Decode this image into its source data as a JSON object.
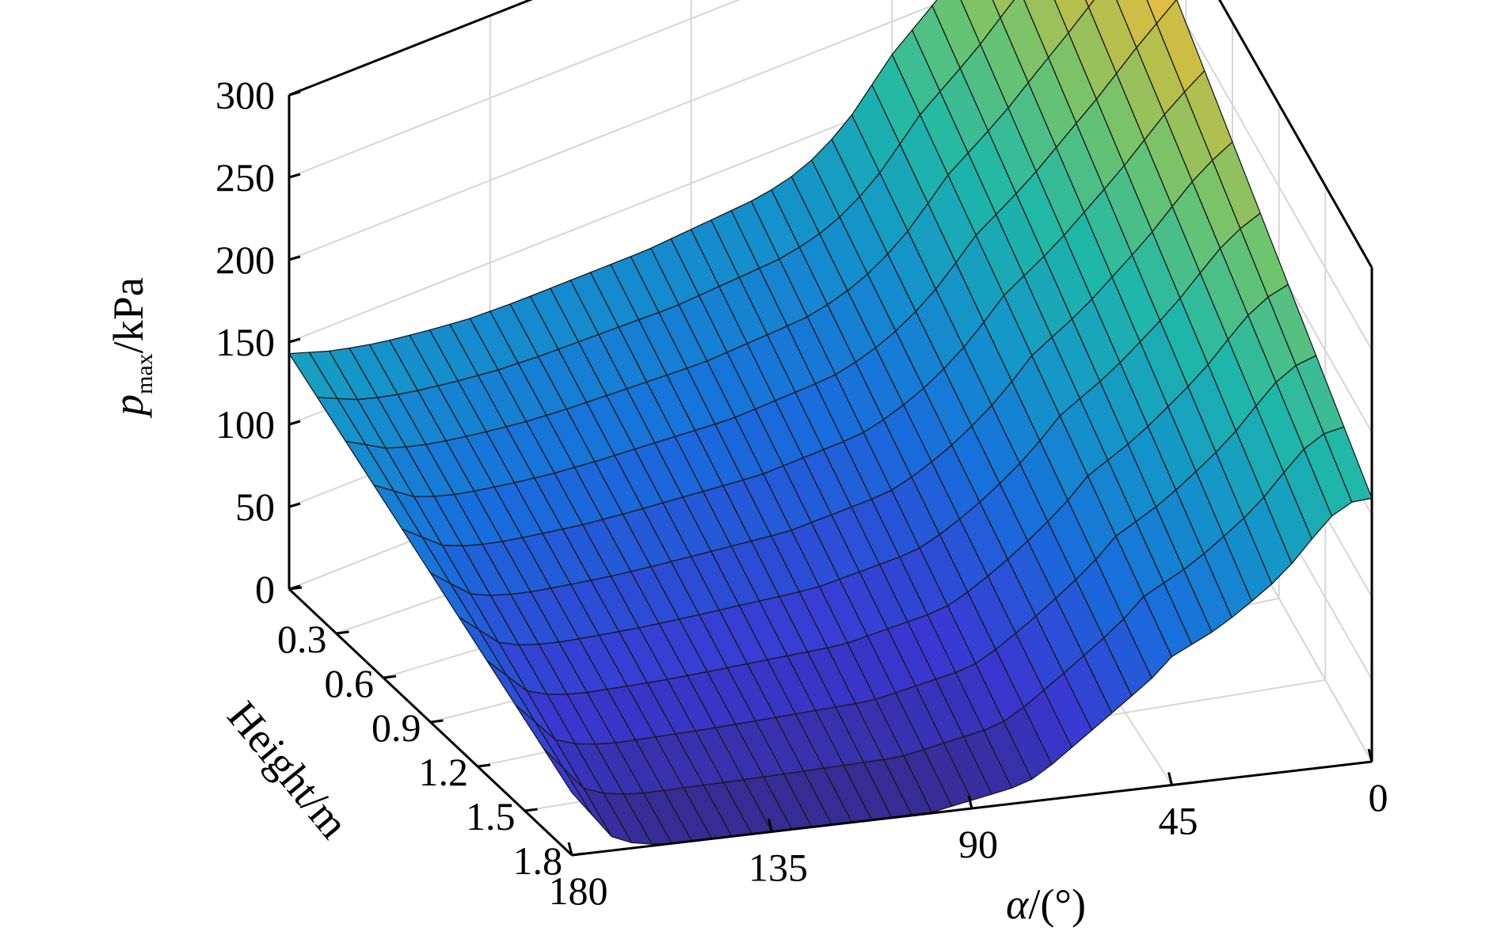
{
  "chart_data": {
    "type": "surface",
    "title": "",
    "xlabel": {
      "symbol": "α",
      "rest": "/(°)"
    },
    "ylabel": "Height/m",
    "zlabel": {
      "symbol": "p",
      "subscript": "max",
      "rest": "/kPa"
    },
    "x_ticks": [
      "180",
      "135",
      "90",
      "45",
      "0"
    ],
    "y_ticks": [
      "0",
      "0.3",
      "0.6",
      "0.9",
      "1.2",
      "1.5",
      "1.8"
    ],
    "z_ticks": [
      "0",
      "50",
      "100",
      "150",
      "200",
      "250",
      "300"
    ],
    "xlim": [
      0,
      180
    ],
    "ylim": [
      0,
      1.8
    ],
    "zlim": [
      0,
      300
    ],
    "grid": true,
    "colormap": "parula",
    "colors": {
      "low": "#3a2fd1",
      "mid": "#1fb8a8",
      "high": "#f6e23a"
    },
    "alpha_deg": [
      0,
      4.5,
      9,
      13.5,
      18,
      22.5,
      27,
      31.5,
      36,
      40.5,
      45,
      49.5,
      54,
      58.5,
      63,
      67.5,
      72,
      76.5,
      81,
      85.5,
      90,
      94.5,
      99,
      103.5,
      108,
      112.5,
      117,
      121.5,
      126,
      130.5,
      135,
      139.5,
      144,
      148.5,
      153,
      157.5,
      162,
      166.5,
      171,
      175.5,
      180
    ],
    "height_m": [
      0,
      0.18,
      0.36,
      0.54,
      0.72,
      0.9,
      1.08,
      1.26,
      1.44,
      1.62,
      1.8
    ],
    "alpha_key": [
      0,
      3,
      6,
      10,
      15,
      20,
      25,
      30,
      36,
      45,
      50,
      55,
      60,
      65,
      70,
      75,
      80,
      90,
      100,
      110,
      120,
      130,
      140,
      150,
      160,
      170,
      180
    ],
    "pmax_at_height_0_kPa": [
      295,
      285,
      275,
      265,
      252,
      240,
      228,
      214,
      200,
      180,
      165,
      150,
      140,
      132,
      128,
      125,
      124,
      122,
      120,
      120,
      120,
      120,
      121,
      124,
      128,
      134,
      143
    ],
    "pmax_at_height_1_8_kPa": [
      160,
      160,
      158,
      150,
      135,
      120,
      110,
      100,
      90,
      78,
      65,
      55,
      45,
      35,
      25,
      15,
      10,
      5,
      0,
      0,
      0,
      0,
      0,
      0,
      0,
      5,
      38
    ]
  }
}
